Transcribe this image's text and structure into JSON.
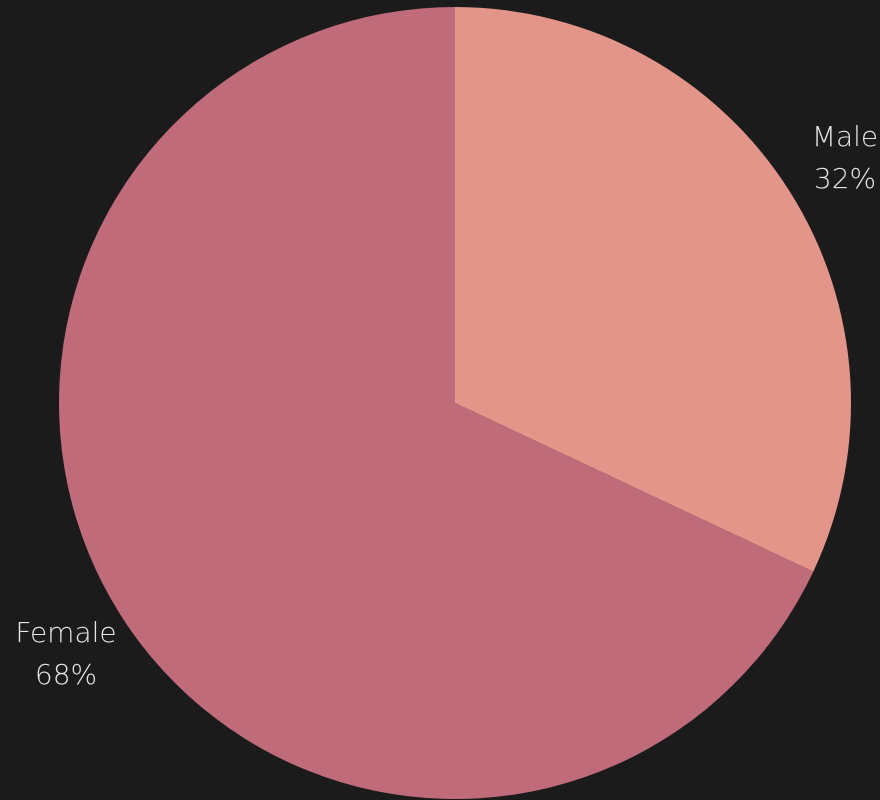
{
  "page": {
    "background": "#1b1b1b"
  },
  "chart_data": {
    "type": "pie",
    "title": "",
    "labels": [
      "Male",
      "Female"
    ],
    "values": [
      32,
      68
    ],
    "percent_labels": [
      "32%",
      "68%"
    ],
    "colors": [
      "#e4958a",
      "#bf6b7a"
    ],
    "start_angle": "12 o'clock",
    "direction": "clockwise",
    "legend": "none",
    "label_color": "#e6e6e6"
  }
}
